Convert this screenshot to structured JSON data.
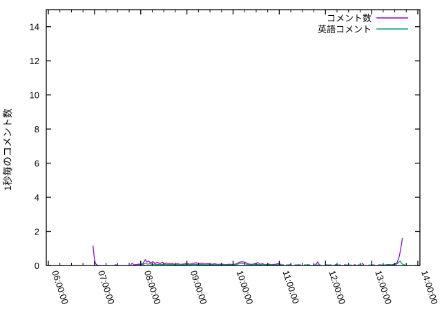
{
  "chart_data": {
    "type": "line",
    "title": "",
    "xlabel": "",
    "ylabel": "1秒毎のコメント数",
    "ylim": [
      0,
      15
    ],
    "y_ticks": [
      0,
      2,
      4,
      6,
      8,
      10,
      12,
      14
    ],
    "x_tick_labels": [
      "06:00:00",
      "07:00:00",
      "08:00:00",
      "09:00:00",
      "10:00:00",
      "11:00:00",
      "12:00:00",
      "13:00:00",
      "14:00:00"
    ],
    "x_minor_interval_minutes": 15,
    "grid": false,
    "legend_position": "top-right-inside",
    "axis_color": "#000000",
    "background_color": "#ffffff",
    "series": [
      {
        "name": "コメント数",
        "color": "#9400d3",
        "points": [
          [
            "06:58:00",
            1.18
          ],
          [
            "06:59:30",
            0.55
          ],
          [
            "07:01:00",
            0.12
          ],
          [
            "07:03:00",
            0.04
          ],
          [
            "07:05:00",
            0.0
          ],
          null,
          [
            "07:26:00",
            0.04
          ],
          [
            "07:30:00",
            0.03
          ],
          null,
          [
            "07:47:00",
            0.04
          ],
          [
            "07:49:00",
            0.14
          ],
          [
            "07:51:00",
            0.04
          ],
          [
            "07:54:00",
            0.05
          ],
          [
            "07:57:00",
            0.08
          ],
          [
            "08:00:00",
            0.07
          ],
          [
            "08:03:00",
            0.12
          ],
          [
            "08:06:00",
            0.34
          ],
          [
            "08:08:00",
            0.2
          ],
          [
            "08:10:00",
            0.27
          ],
          [
            "08:13:00",
            0.14
          ],
          [
            "08:16:00",
            0.22
          ],
          [
            "08:19:00",
            0.12
          ],
          [
            "08:22:00",
            0.18
          ],
          [
            "08:25:00",
            0.11
          ],
          [
            "08:28:00",
            0.19
          ],
          [
            "08:31:00",
            0.1
          ],
          [
            "08:34:00",
            0.15
          ],
          [
            "08:37:00",
            0.09
          ],
          [
            "08:40:00",
            0.13
          ],
          [
            "08:44:00",
            0.07
          ],
          [
            "08:48:00",
            0.11
          ],
          [
            "08:52:00",
            0.06
          ],
          [
            "08:56:00",
            0.09
          ],
          [
            "09:00:00",
            0.11
          ],
          [
            "09:04:00",
            0.08
          ],
          [
            "09:08:00",
            0.13
          ],
          [
            "09:12:00",
            0.16
          ],
          [
            "09:16:00",
            0.1
          ],
          [
            "09:20:00",
            0.14
          ],
          [
            "09:24:00",
            0.09
          ],
          [
            "09:28:00",
            0.11
          ],
          [
            "09:32:00",
            0.07
          ],
          [
            "09:36:00",
            0.1
          ],
          [
            "09:40:00",
            0.06
          ],
          [
            "09:45:00",
            0.08
          ],
          [
            "09:50:00",
            0.05
          ],
          [
            "09:55:00",
            0.07
          ],
          [
            "10:00:00",
            0.06
          ],
          [
            "10:04:00",
            0.09
          ],
          [
            "10:08:00",
            0.19
          ],
          [
            "10:12:00",
            0.22
          ],
          [
            "10:16:00",
            0.18
          ],
          [
            "10:20:00",
            0.09
          ],
          [
            "10:24:00",
            0.06
          ],
          [
            "10:28:00",
            0.11
          ],
          [
            "10:32:00",
            0.17
          ],
          [
            "10:35:00",
            0.07
          ],
          [
            "10:38:00",
            0.11
          ],
          [
            "10:42:00",
            0.05
          ],
          [
            "10:46:00",
            0.08
          ],
          [
            "10:50:00",
            0.05
          ],
          [
            "10:55:00",
            0.07
          ],
          [
            "11:00:00",
            0.13
          ],
          [
            "11:02:00",
            0.05
          ],
          [
            "11:06:00",
            0.03
          ],
          null,
          [
            "11:12:00",
            0.05
          ],
          [
            "11:16:00",
            0.03
          ],
          null,
          [
            "11:24:00",
            0.05
          ],
          [
            "11:28:00",
            0.03
          ],
          null,
          [
            "11:36:00",
            0.05
          ],
          [
            "11:40:00",
            0.03
          ],
          null,
          [
            "11:47:00",
            0.05
          ],
          [
            "11:50:00",
            0.21
          ],
          [
            "11:52:00",
            0.04
          ],
          null,
          [
            "12:00:00",
            0.04
          ],
          [
            "12:04:00",
            0.03
          ],
          null,
          [
            "12:12:00",
            0.05
          ],
          [
            "12:16:00",
            0.03
          ],
          null,
          [
            "12:24:00",
            0.04
          ],
          [
            "12:28:00",
            0.03
          ],
          null,
          [
            "12:38:00",
            0.04
          ],
          null,
          [
            "12:47:00",
            0.15
          ],
          [
            "12:50:00",
            0.04
          ],
          null,
          [
            "13:00:00",
            0.04
          ],
          [
            "13:04:00",
            0.03
          ],
          null,
          [
            "13:10:00",
            0.04
          ],
          null,
          [
            "13:18:00",
            0.04
          ],
          [
            "13:22:00",
            0.06
          ],
          [
            "13:26:00",
            0.04
          ],
          [
            "13:30:00",
            0.09
          ],
          [
            "13:33:00",
            0.16
          ],
          [
            "13:36:00",
            0.55
          ],
          [
            "13:38:00",
            1.05
          ],
          [
            "13:40:00",
            1.62
          ]
        ]
      },
      {
        "name": "英語コメント",
        "color": "#009e73",
        "points": [
          [
            "07:57:00",
            0.03
          ],
          [
            "08:00:00",
            0.04
          ],
          [
            "08:03:00",
            0.06
          ],
          [
            "08:06:00",
            0.12
          ],
          [
            "08:09:00",
            0.08
          ],
          [
            "08:12:00",
            0.1
          ],
          [
            "08:15:00",
            0.06
          ],
          [
            "08:18:00",
            0.08
          ],
          [
            "08:21:00",
            0.05
          ],
          [
            "08:24:00",
            0.07
          ],
          [
            "08:27:00",
            0.05
          ],
          [
            "08:30:00",
            0.08
          ],
          [
            "08:35:00",
            0.05
          ],
          [
            "08:40:00",
            0.06
          ],
          [
            "08:45:00",
            0.04
          ],
          [
            "08:50:00",
            0.06
          ],
          [
            "08:55:00",
            0.04
          ],
          [
            "09:00:00",
            0.06
          ],
          [
            "09:05:00",
            0.05
          ],
          [
            "09:10:00",
            0.07
          ],
          [
            "09:15:00",
            0.05
          ],
          [
            "09:20:00",
            0.06
          ],
          [
            "09:25:00",
            0.04
          ],
          [
            "09:30:00",
            0.06
          ],
          [
            "09:35:00",
            0.04
          ],
          [
            "09:40:00",
            0.05
          ],
          [
            "09:45:00",
            0.04
          ],
          [
            "09:50:00",
            0.05
          ],
          [
            "09:55:00",
            0.03
          ],
          [
            "10:00:00",
            0.05
          ],
          [
            "10:04:00",
            0.06
          ],
          [
            "10:08:00",
            0.1
          ],
          [
            "10:12:00",
            0.12
          ],
          [
            "10:16:00",
            0.09
          ],
          [
            "10:20:00",
            0.05
          ],
          [
            "10:25:00",
            0.04
          ],
          [
            "10:30:00",
            0.07
          ],
          [
            "10:35:00",
            0.04
          ],
          [
            "10:40:00",
            0.06
          ],
          [
            "10:45:00",
            0.03
          ],
          [
            "10:50:00",
            0.05
          ],
          [
            "10:55:00",
            0.03
          ],
          [
            "11:00:00",
            0.05
          ],
          [
            "11:04:00",
            0.03
          ],
          null,
          [
            "11:09:00",
            0.04
          ],
          [
            "11:14:00",
            0.03
          ],
          null,
          [
            "11:20:00",
            0.04
          ],
          [
            "11:26:00",
            0.03
          ],
          null,
          [
            "11:32:00",
            0.04
          ],
          [
            "11:38:00",
            0.03
          ],
          null,
          [
            "11:44:00",
            0.04
          ],
          [
            "11:50:00",
            0.03
          ],
          [
            "11:54:00",
            0.04
          ],
          null,
          [
            "12:02:00",
            0.03
          ],
          [
            "12:08:00",
            0.04
          ],
          null,
          [
            "12:14:00",
            0.03
          ],
          [
            "12:20:00",
            0.04
          ],
          null,
          [
            "12:28:00",
            0.03
          ],
          [
            "12:34:00",
            0.03
          ],
          null,
          [
            "12:42:00",
            0.04
          ],
          [
            "12:48:00",
            0.03
          ],
          null,
          [
            "12:56:00",
            0.03
          ],
          [
            "13:02:00",
            0.03
          ],
          null,
          [
            "13:10:00",
            0.04
          ],
          [
            "13:16:00",
            0.03
          ],
          [
            "13:22:00",
            0.04
          ],
          [
            "13:27:00",
            0.03
          ],
          [
            "13:31:00",
            0.06
          ],
          [
            "13:34:00",
            0.12
          ],
          [
            "13:37:00",
            0.27
          ],
          [
            "13:39:00",
            0.12
          ],
          [
            "13:41:00",
            0.05
          ],
          [
            "13:46:00",
            0.01
          ]
        ]
      }
    ]
  }
}
